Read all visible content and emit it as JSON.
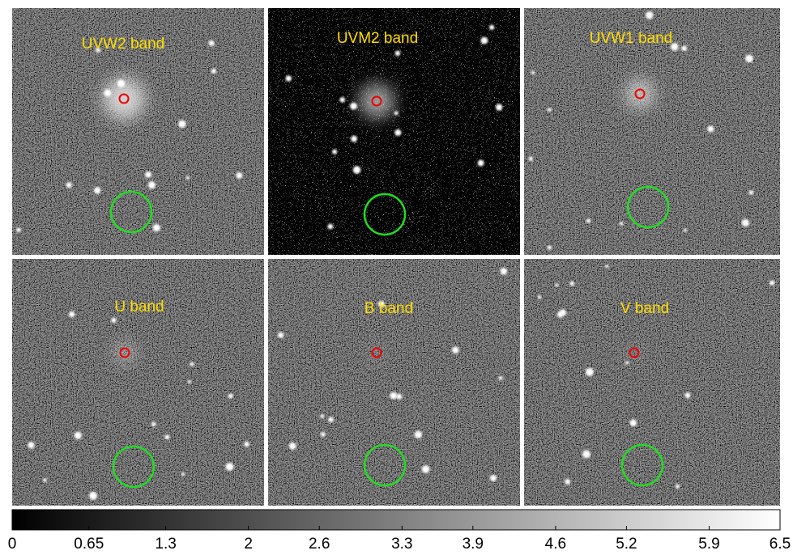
{
  "panels": [
    {
      "label": "UVW2 band"
    },
    {
      "label": "UVM2 band"
    },
    {
      "label": "UVW1 band"
    },
    {
      "label": "U band"
    },
    {
      "label": "B band"
    },
    {
      "label": "V band"
    }
  ],
  "colorbar": {
    "range": [
      0,
      6.5
    ],
    "ticks": [
      0,
      0.65,
      1.3,
      2,
      2.6,
      3.3,
      3.9,
      4.6,
      5.2,
      5.9,
      6.5
    ]
  }
}
